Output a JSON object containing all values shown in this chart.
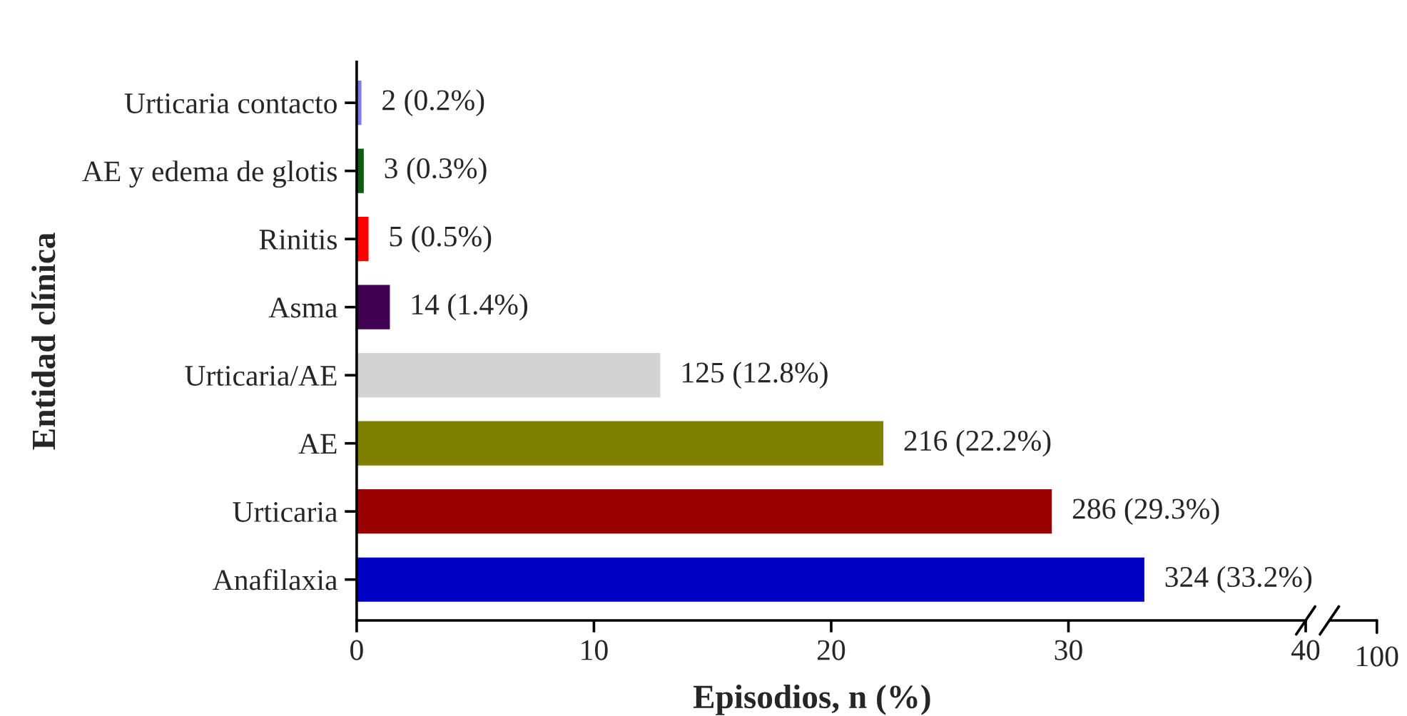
{
  "chart_data": {
    "type": "bar",
    "orientation": "horizontal",
    "xlabel": "Episodios, n (%)",
    "ylabel": "Entidad clínica",
    "categories": [
      "Urticaria contacto",
      "AE y edema de glotis",
      "Rinitis",
      "Asma",
      "Urticaria/AE",
      "AE",
      "Urticaria",
      "Anafilaxia"
    ],
    "values": [
      0.2,
      0.3,
      0.5,
      1.4,
      12.8,
      22.2,
      29.3,
      33.2
    ],
    "colors": [
      "#7b7bf0",
      "#0b5e0b",
      "#ff0000",
      "#420053",
      "#d3d3d3",
      "#808000",
      "#9a0000",
      "#0000c4"
    ],
    "value_labels": [
      "2 (0.2%)",
      "3 (0.3%)",
      "5 (0.5%)",
      "14 (1.4%)",
      "125 (12.8%)",
      "216 (22.2%)",
      "286 (29.3%)",
      "324 (33.2%)"
    ],
    "xlim": [
      0,
      40
    ],
    "xticks": [
      0,
      10,
      20,
      30,
      40
    ],
    "annotations": [
      "100"
    ]
  }
}
